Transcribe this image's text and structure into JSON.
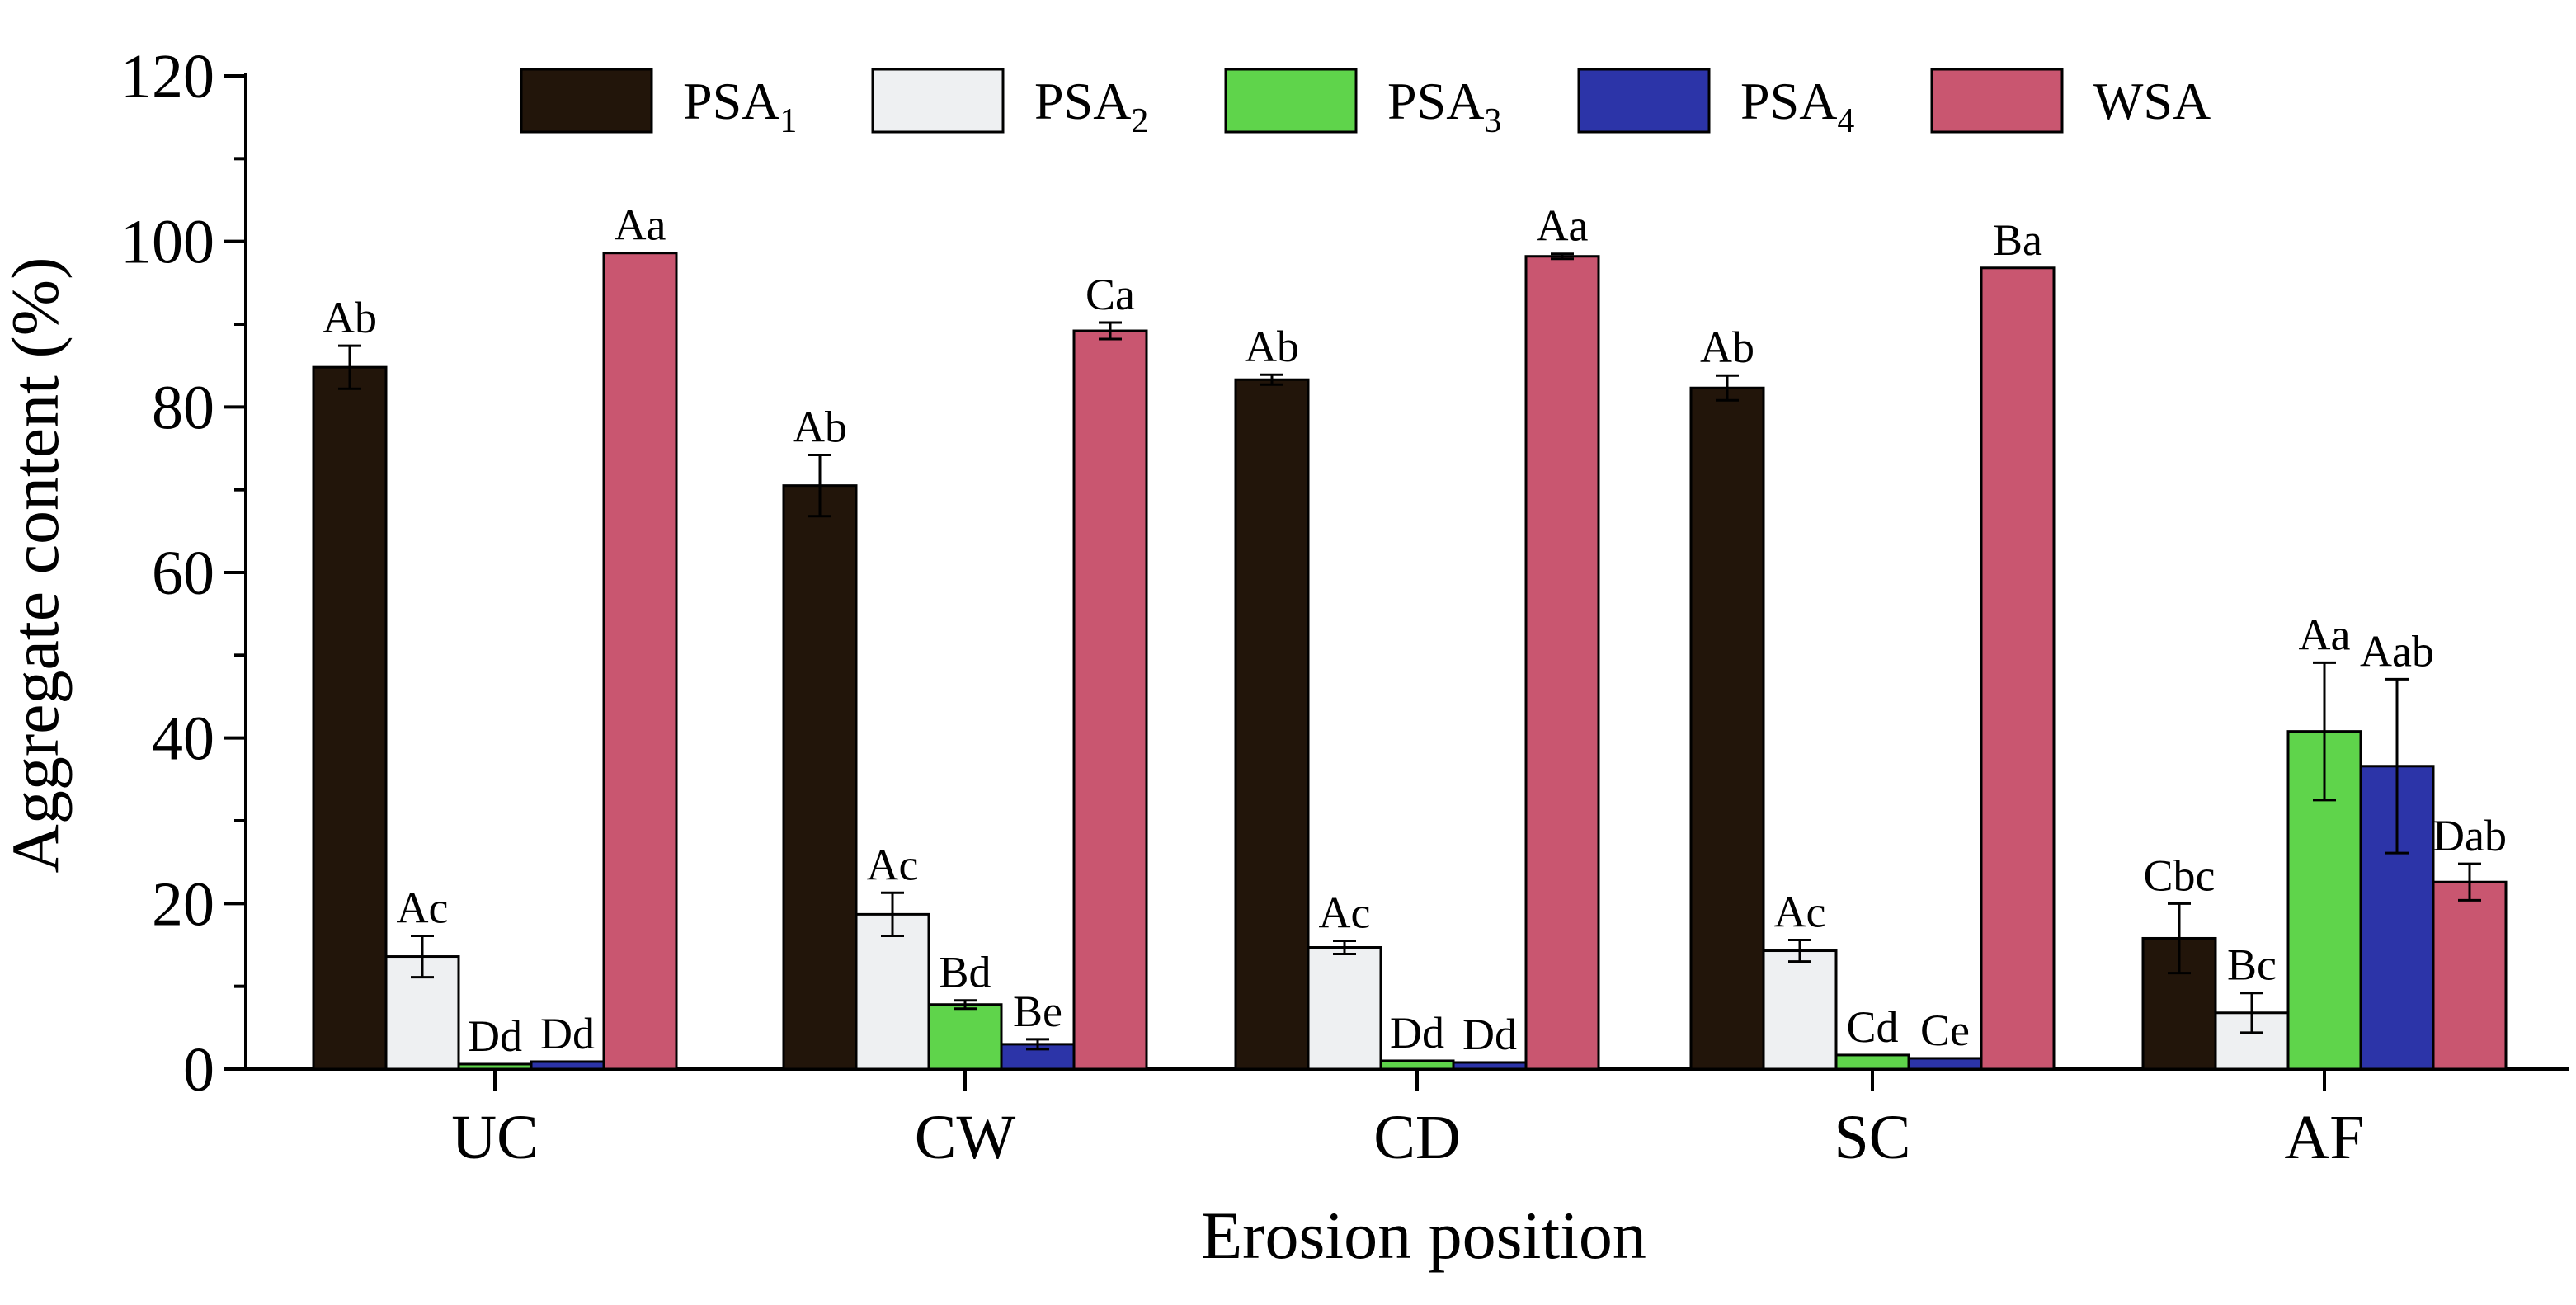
{
  "chart_data": {
    "type": "bar",
    "title": "",
    "xlabel": "Erosion position",
    "ylabel": "Aggregate content (%)",
    "ylim": [
      0,
      120
    ],
    "yticks": [
      "0",
      "20",
      "40",
      "60",
      "80",
      "100",
      "120"
    ],
    "grid": false,
    "legend_position": "top",
    "categories": [
      "UC",
      "CW",
      "CD",
      "SC",
      "AF"
    ],
    "series": [
      {
        "name": "PSA",
        "subscript": "1",
        "color": "#22150a",
        "values": [
          84.8,
          70.5,
          83.3,
          82.3,
          15.8
        ],
        "errors": [
          2.6,
          3.7,
          0.6,
          1.5,
          4.2
        ],
        "labels": [
          "Ab",
          "Ab",
          "Ab",
          "Ab",
          "Cbc"
        ]
      },
      {
        "name": "PSA",
        "subscript": "2",
        "color": "#eef0f2",
        "values": [
          13.6,
          18.7,
          14.7,
          14.3,
          6.8
        ],
        "errors": [
          2.5,
          2.6,
          0.8,
          1.3,
          2.4
        ],
        "labels": [
          "Ac",
          "Ac",
          "Ac",
          "Ac",
          "Bc"
        ]
      },
      {
        "name": "PSA",
        "subscript": "3",
        "color": "#5fd44b",
        "values": [
          0.6,
          7.8,
          1.0,
          1.7,
          40.8
        ],
        "errors": [
          0,
          0.5,
          0,
          0,
          8.3
        ],
        "labels": [
          "Dd",
          "Bd",
          "Dd",
          "Cd",
          "Aa"
        ]
      },
      {
        "name": "PSA",
        "subscript": "4",
        "color": "#2c34a8",
        "values": [
          0.9,
          3.0,
          0.8,
          1.3,
          36.6
        ],
        "errors": [
          0,
          0.6,
          0,
          0,
          10.5
        ],
        "labels": [
          "Dd",
          "Be",
          "Dd",
          "Ce",
          "Aab"
        ]
      },
      {
        "name": "WSA",
        "subscript": "",
        "color": "#c95670",
        "values": [
          98.6,
          89.2,
          98.2,
          96.8,
          22.6
        ],
        "errors": [
          0,
          1.0,
          0.3,
          0,
          2.2
        ],
        "labels": [
          "Aa",
          "Ca",
          "Aa",
          "Ba",
          "Dab"
        ]
      }
    ]
  }
}
